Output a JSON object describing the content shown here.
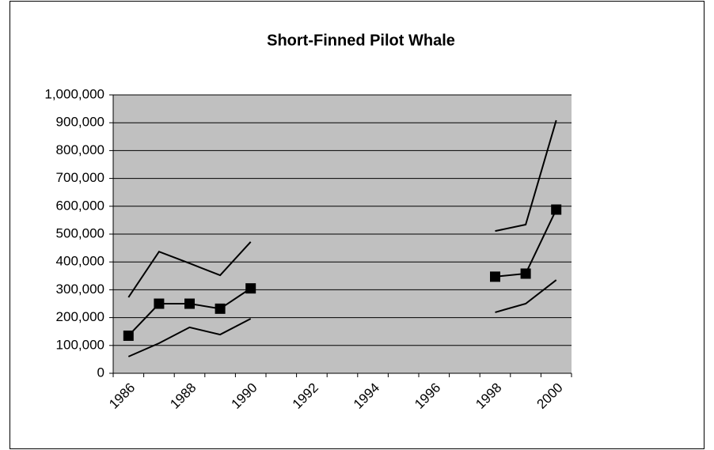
{
  "chart_data": {
    "type": "line",
    "title": "Short-Finned Pilot Whale",
    "categories": [
      "1986",
      null,
      "1988",
      null,
      "1990",
      null,
      "1992",
      null,
      "1994",
      null,
      "1996",
      null,
      "1998",
      null,
      "2000"
    ],
    "series": [
      {
        "color": "#000000",
        "marker": "square",
        "values": [
          135000,
          250000,
          250000,
          232000,
          305000,
          null,
          null,
          null,
          null,
          null,
          null,
          null,
          347000,
          358000,
          588000
        ]
      },
      {
        "color": "#000000",
        "marker": "none",
        "values": [
          273000,
          437000,
          395000,
          352000,
          472000,
          null,
          null,
          null,
          null,
          null,
          null,
          null,
          511000,
          534000,
          909000
        ]
      },
      {
        "color": "#000000",
        "marker": "none",
        "values": [
          60000,
          108000,
          165000,
          139000,
          196000,
          null,
          null,
          null,
          null,
          null,
          null,
          null,
          219000,
          250000,
          335000
        ]
      }
    ],
    "ylim": [
      0,
      1000000
    ],
    "yticks": [
      0,
      {
        "value": 100000,
        "label": "100,000"
      },
      {
        "value": 200000,
        "label": "200,000"
      },
      {
        "value": 300000,
        "label": "300,000"
      },
      {
        "value": 400000,
        "label": "400,000"
      },
      {
        "value": 500000,
        "label": "500,000"
      },
      {
        "value": 600000,
        "label": "600,000"
      },
      {
        "value": 700000,
        "label": "700,000"
      },
      {
        "value": 800000,
        "label": "800,000"
      },
      {
        "value": 900000,
        "label": "900,000"
      },
      {
        "value": 1000000,
        "label": "1,000,000"
      }
    ],
    "grid": true,
    "plot_background": "#c0c0c0"
  }
}
